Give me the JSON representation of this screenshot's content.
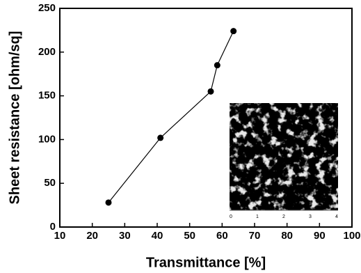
{
  "chart_data": {
    "type": "line",
    "xlabel": "Transmittance [%]",
    "ylabel": "Sheet resistance [ohm/sq]",
    "x": [
      25,
      41,
      56.5,
      58.5,
      63.5
    ],
    "values": [
      28,
      102,
      155,
      185,
      224
    ],
    "color": "#000000",
    "xlim": [
      10,
      100
    ],
    "xticks": [
      10,
      20,
      30,
      40,
      50,
      60,
      70,
      80,
      90,
      100
    ],
    "ylim": [
      0,
      250
    ],
    "yticks": [
      0,
      50,
      100,
      150,
      200,
      250
    ],
    "inset": {
      "xticks": [
        0,
        1,
        2,
        3,
        4
      ]
    }
  }
}
